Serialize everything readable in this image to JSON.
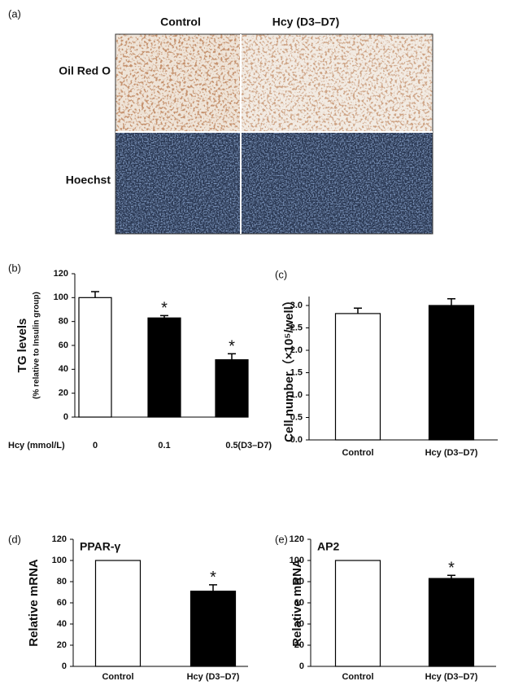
{
  "panel_a": {
    "label": "(a)",
    "columns": [
      "Control",
      "Hcy (D3–D7)"
    ],
    "rows": [
      "Oil Red O",
      "Hoechst"
    ]
  },
  "chart_data": [
    {
      "type": "bar",
      "panel": "(b)",
      "ylabel": "TG levels",
      "ylabel_note": "(% relative to Insulin group)",
      "xlabel": "Hcy (mmol/L)",
      "xlabel_suffix": "(D3–D7)",
      "categories": [
        "0",
        "0.1",
        "0.5"
      ],
      "values": [
        100,
        83,
        48
      ],
      "errors": [
        5,
        2,
        5
      ],
      "colors": [
        "#ffffff",
        "#000000",
        "#000000"
      ],
      "significance": [
        null,
        "*",
        "*"
      ],
      "ylim": [
        0,
        120
      ],
      "yticks": [
        0,
        20,
        40,
        60,
        80,
        100,
        120
      ]
    },
    {
      "type": "bar",
      "panel": "(c)",
      "ylabel": "Cell number（×10⁵/well）",
      "categories": [
        "Control",
        "Hcy (D3–D7)"
      ],
      "values": [
        2.82,
        3.0
      ],
      "errors": [
        0.12,
        0.15
      ],
      "colors": [
        "#ffffff",
        "#000000"
      ],
      "significance": [
        null,
        null
      ],
      "ylim": [
        0,
        3.2
      ],
      "yticks": [
        {
          "value": 0,
          "label": "0.0"
        },
        0.5,
        {
          "value": 1,
          "label": "1.0"
        },
        1.5,
        {
          "value": 2,
          "label": "2.0"
        },
        2.5,
        {
          "value": 3,
          "label": "3.0"
        }
      ]
    },
    {
      "type": "bar",
      "panel": "(d)",
      "title": "PPAR-γ",
      "ylabel": "Relative mRNA",
      "categories": [
        "Control",
        "Hcy (D3–D7)"
      ],
      "values": [
        100,
        71
      ],
      "errors": [
        null,
        6
      ],
      "colors": [
        "#ffffff",
        "#000000"
      ],
      "significance": [
        null,
        "*"
      ],
      "ylim": [
        0,
        120
      ],
      "yticks": [
        0,
        20,
        40,
        60,
        80,
        100,
        120
      ]
    },
    {
      "type": "bar",
      "panel": "(e)",
      "title": "AP2",
      "ylabel": "Relative mRNA",
      "categories": [
        "Control",
        "Hcy (D3–D7)"
      ],
      "values": [
        100,
        83
      ],
      "errors": [
        null,
        3
      ],
      "colors": [
        "#ffffff",
        "#000000"
      ],
      "significance": [
        null,
        "*"
      ],
      "ylim": [
        0,
        120
      ],
      "yticks": [
        0,
        20,
        40,
        60,
        80,
        100,
        120
      ]
    }
  ]
}
